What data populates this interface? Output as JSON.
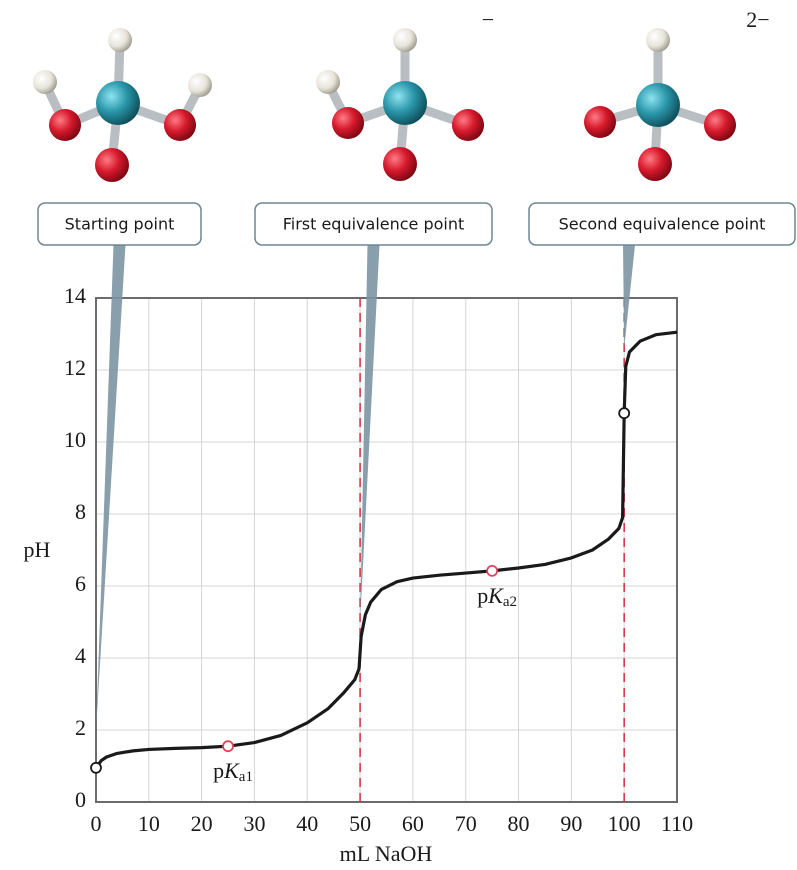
{
  "chart_data": {
    "type": "line",
    "xlabel": "mL NaOH",
    "ylabel": "pH",
    "xlim": [
      0,
      110
    ],
    "ylim": [
      0,
      14
    ],
    "xticks": [
      0,
      10,
      20,
      30,
      40,
      50,
      60,
      70,
      80,
      90,
      100,
      110
    ],
    "yticks": [
      0,
      2,
      4,
      6,
      8,
      10,
      12,
      14
    ],
    "grid": true,
    "series": [
      {
        "color": "#1a1a1a",
        "x": [
          0,
          1,
          2,
          4,
          7,
          10,
          15,
          20,
          25,
          30,
          35,
          40,
          44,
          47,
          49,
          49.8,
          50.2,
          51,
          52,
          54,
          57,
          60,
          65,
          70,
          75,
          80,
          85,
          90,
          94,
          97,
          99,
          99.7,
          100,
          100.3,
          101,
          103,
          106,
          110
        ],
        "values": [
          0.95,
          1.15,
          1.25,
          1.35,
          1.42,
          1.46,
          1.49,
          1.51,
          1.55,
          1.65,
          1.85,
          2.2,
          2.6,
          3.05,
          3.4,
          3.7,
          4.6,
          5.2,
          5.55,
          5.9,
          6.12,
          6.22,
          6.3,
          6.36,
          6.42,
          6.5,
          6.6,
          6.78,
          7.0,
          7.3,
          7.6,
          7.9,
          10.8,
          12.1,
          12.5,
          12.8,
          12.98,
          13.05
        ]
      }
    ],
    "markers": [
      {
        "x": 0,
        "y": 0.95,
        "fill": "#ffffff",
        "stroke": "#1a1a1a"
      },
      {
        "x": 25,
        "y": 1.55,
        "fill": "#ffffff",
        "stroke": "#d9475a",
        "label": [
          "p",
          "K",
          "a1"
        ]
      },
      {
        "x": 75,
        "y": 6.42,
        "fill": "#ffffff",
        "stroke": "#d9475a",
        "label": [
          "p",
          "K",
          "a2"
        ]
      },
      {
        "x": 100,
        "y": 10.8,
        "fill": "#ffffff",
        "stroke": "#1a1a1a"
      }
    ],
    "equivalence_lines": [
      50,
      100
    ],
    "equivalence_color": "#d9364a",
    "callouts": [
      {
        "text": "Starting point",
        "x": 0,
        "y": 2
      },
      {
        "text": "First equivalence point",
        "x": 50,
        "y": 5
      },
      {
        "text": "Second equivalence point",
        "x": 100,
        "y": 12.6
      }
    ],
    "charges": [
      "−",
      "2−"
    ]
  }
}
